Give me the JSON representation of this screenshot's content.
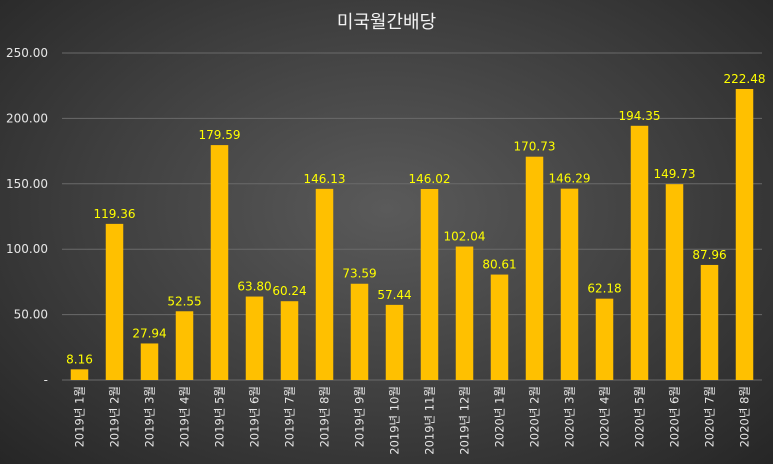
{
  "chart_data": {
    "type": "bar",
    "title": "미국월간배당",
    "categories": [
      "2019년 1월",
      "2019년 2월",
      "2019년 3월",
      "2019년 4월",
      "2019년 5월",
      "2019년 6월",
      "2019년 7월",
      "2019년 8월",
      "2019년 9월",
      "2019년 10월",
      "2019년 11월",
      "2019년 12월",
      "2020년 1월",
      "2020년 2월",
      "2020년 3월",
      "2020년 4월",
      "2020년 5월",
      "2020년 6월",
      "2020년 7월",
      "2020년 8월"
    ],
    "values": [
      8.16,
      119.36,
      27.94,
      52.55,
      179.59,
      63.8,
      60.24,
      146.13,
      73.59,
      57.44,
      146.02,
      102.04,
      80.61,
      170.73,
      146.29,
      62.18,
      194.35,
      149.73,
      87.96,
      222.48
    ],
    "data_labels": [
      "8.16",
      "119.36",
      "27.94",
      "52.55",
      "179.59",
      "63.80",
      "60.24",
      "146.13",
      "73.59",
      "57.44",
      "146.02",
      "102.04",
      "80.61",
      "170.73",
      "146.29",
      "62.18",
      "194.35",
      "149.73",
      "87.96",
      "222.48"
    ],
    "y_ticks": [
      "-",
      "50.00",
      "100.00",
      "150.00",
      "200.00",
      "250.00"
    ],
    "xlabel": "",
    "ylabel": "",
    "ylim": [
      0,
      250
    ],
    "grid": true,
    "legend": "none",
    "colors": {
      "bar": "#ffc000",
      "data_label": "#ffff00"
    }
  }
}
